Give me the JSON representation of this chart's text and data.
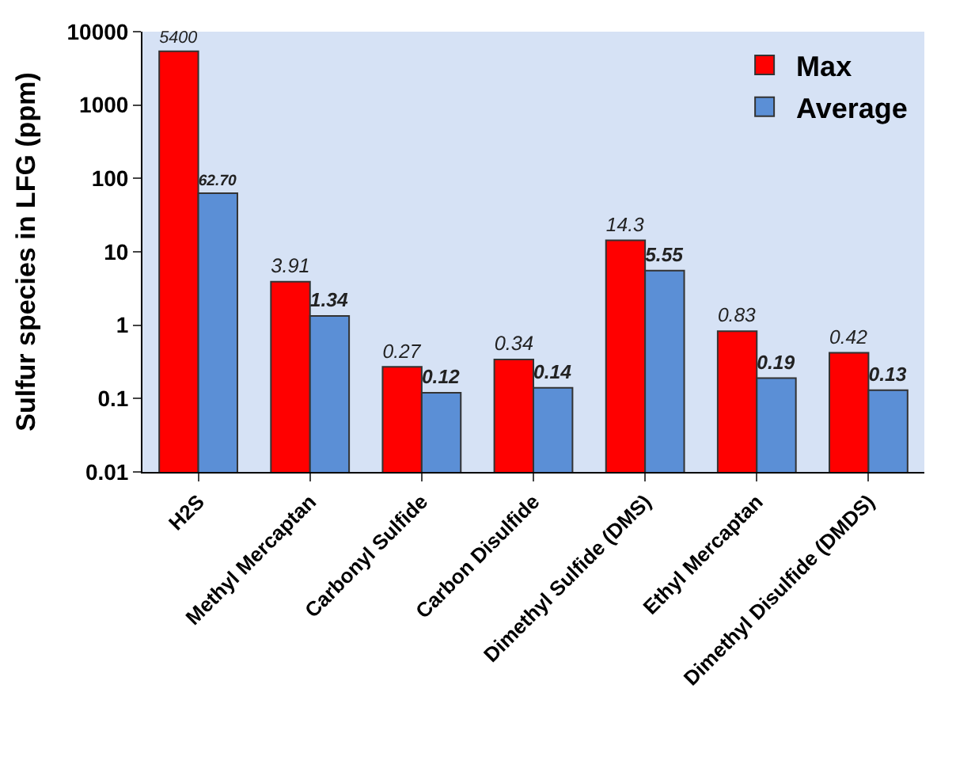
{
  "chart_data": {
    "type": "bar",
    "ylabel": "Sulfur species in LFG (ppm)",
    "categories": [
      "H2S",
      "Methyl Mercaptan",
      "Carbonyl Sulfide",
      "Carbon Disulfide",
      "Dimethyl Sulfide (DMS)",
      "Ethyl Mercaptan",
      "Dimethyl Disulfide (DMDS)"
    ],
    "series": [
      {
        "name": "Max",
        "color": "#ff0000",
        "values": [
          5400,
          3.91,
          0.27,
          0.34,
          14.3,
          0.83,
          0.42
        ],
        "value_labels": [
          "5400",
          "3.91",
          "0.27",
          "0.34",
          "14.3",
          "0.83",
          "0.42"
        ]
      },
      {
        "name": "Average",
        "color": "#5b8fd6",
        "values": [
          62.7,
          1.34,
          0.12,
          0.14,
          5.55,
          0.19,
          0.13
        ],
        "value_labels": [
          "62.70",
          "1.34",
          "0.12",
          "0.14",
          "5.55",
          "0.19",
          "0.13"
        ]
      }
    ],
    "log": true,
    "ylim": [
      0.01,
      10000
    ],
    "yticks": [
      0.01,
      0.1,
      1,
      10,
      100,
      1000,
      10000
    ],
    "grid": false,
    "legend": "top right"
  }
}
